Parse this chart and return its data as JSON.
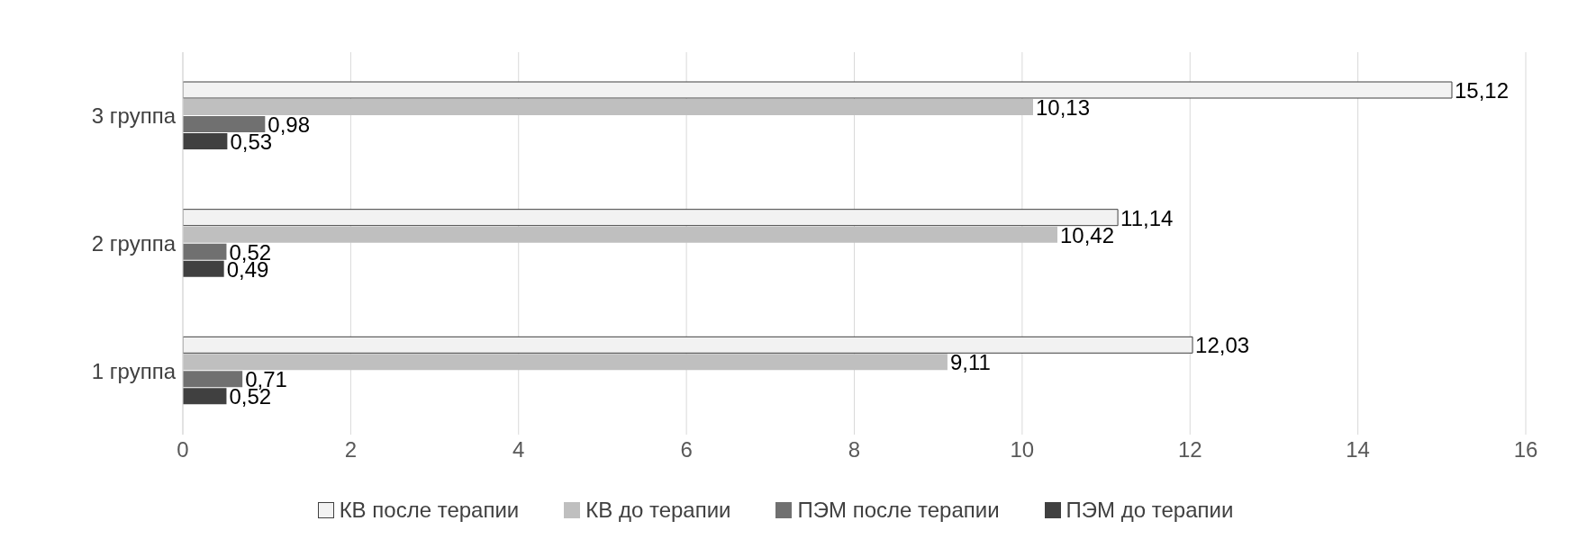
{
  "chart_data": {
    "type": "bar",
    "orientation": "horizontal",
    "categories": [
      "3 группа",
      "2 группа",
      "1 группа"
    ],
    "series": [
      {
        "name": "КВ после терапии",
        "color": "#f2f2f2",
        "values": [
          15.12,
          11.14,
          12.03
        ],
        "value_labels": [
          "15,12",
          "11,14",
          "12,03"
        ]
      },
      {
        "name": "КВ до терапии",
        "color": "#bfbfbf",
        "values": [
          10.13,
          10.42,
          9.11
        ],
        "value_labels": [
          "10,13",
          "10,42",
          "9,11"
        ]
      },
      {
        "name": "ПЭМ после терапии",
        "color": "#707070",
        "values": [
          0.98,
          0.52,
          0.71
        ],
        "value_labels": [
          "0,98",
          "0,52",
          "0,71"
        ]
      },
      {
        "name": "ПЭМ до терапии",
        "color": "#404040",
        "values": [
          0.53,
          0.49,
          0.52
        ],
        "value_labels": [
          "0,53",
          "0,49",
          "0,52"
        ]
      }
    ],
    "xlim": [
      0,
      16
    ],
    "xticks": [
      0,
      2,
      4,
      6,
      8,
      10,
      12,
      14,
      16
    ],
    "grid": "x",
    "legend": "bottom"
  }
}
